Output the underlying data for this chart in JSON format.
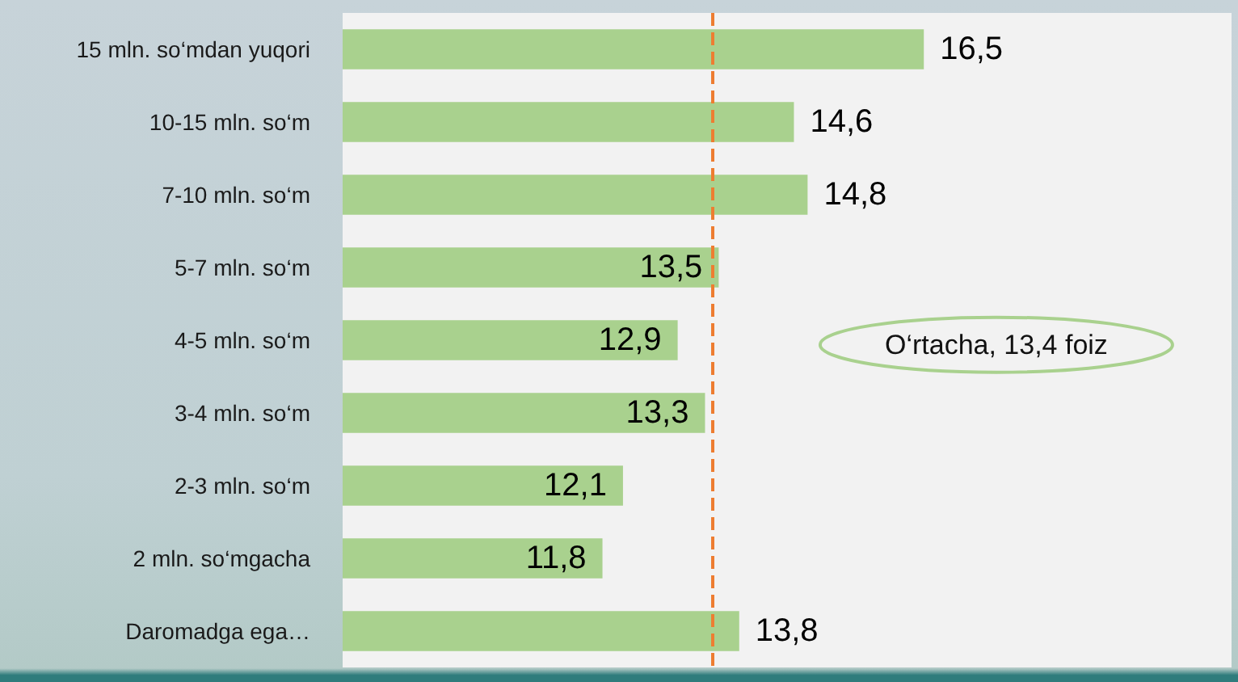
{
  "chart_data": {
    "type": "bar",
    "orientation": "horizontal",
    "categories": [
      "15 mln. so‘mdan yuqori",
      "10-15 mln. so‘m",
      "7-10 mln. so‘m",
      "5-7 mln. so‘m",
      "4-5 mln. so‘m",
      "3-4 mln. so‘m",
      "2-3 mln. so‘m",
      "2 mln. so‘mgacha",
      "Daromadga ega…"
    ],
    "values": [
      16.5,
      14.6,
      14.8,
      13.5,
      12.9,
      13.3,
      12.1,
      11.8,
      13.8
    ],
    "value_labels": [
      "16,5",
      "14,6",
      "14,8",
      "13,5",
      "12,9",
      "13,3",
      "12,1",
      "11,8",
      "13,8"
    ],
    "color": "#a9d18e",
    "xlim": [
      8,
      21
    ],
    "tick_labels": "y",
    "ref_lines": [
      {
        "axis": "x",
        "value": 13.4,
        "color": "#ed7d31",
        "line_style": "dashed"
      }
    ],
    "annotations": [
      "O‘rtacha, 13,4 foiz"
    ]
  }
}
